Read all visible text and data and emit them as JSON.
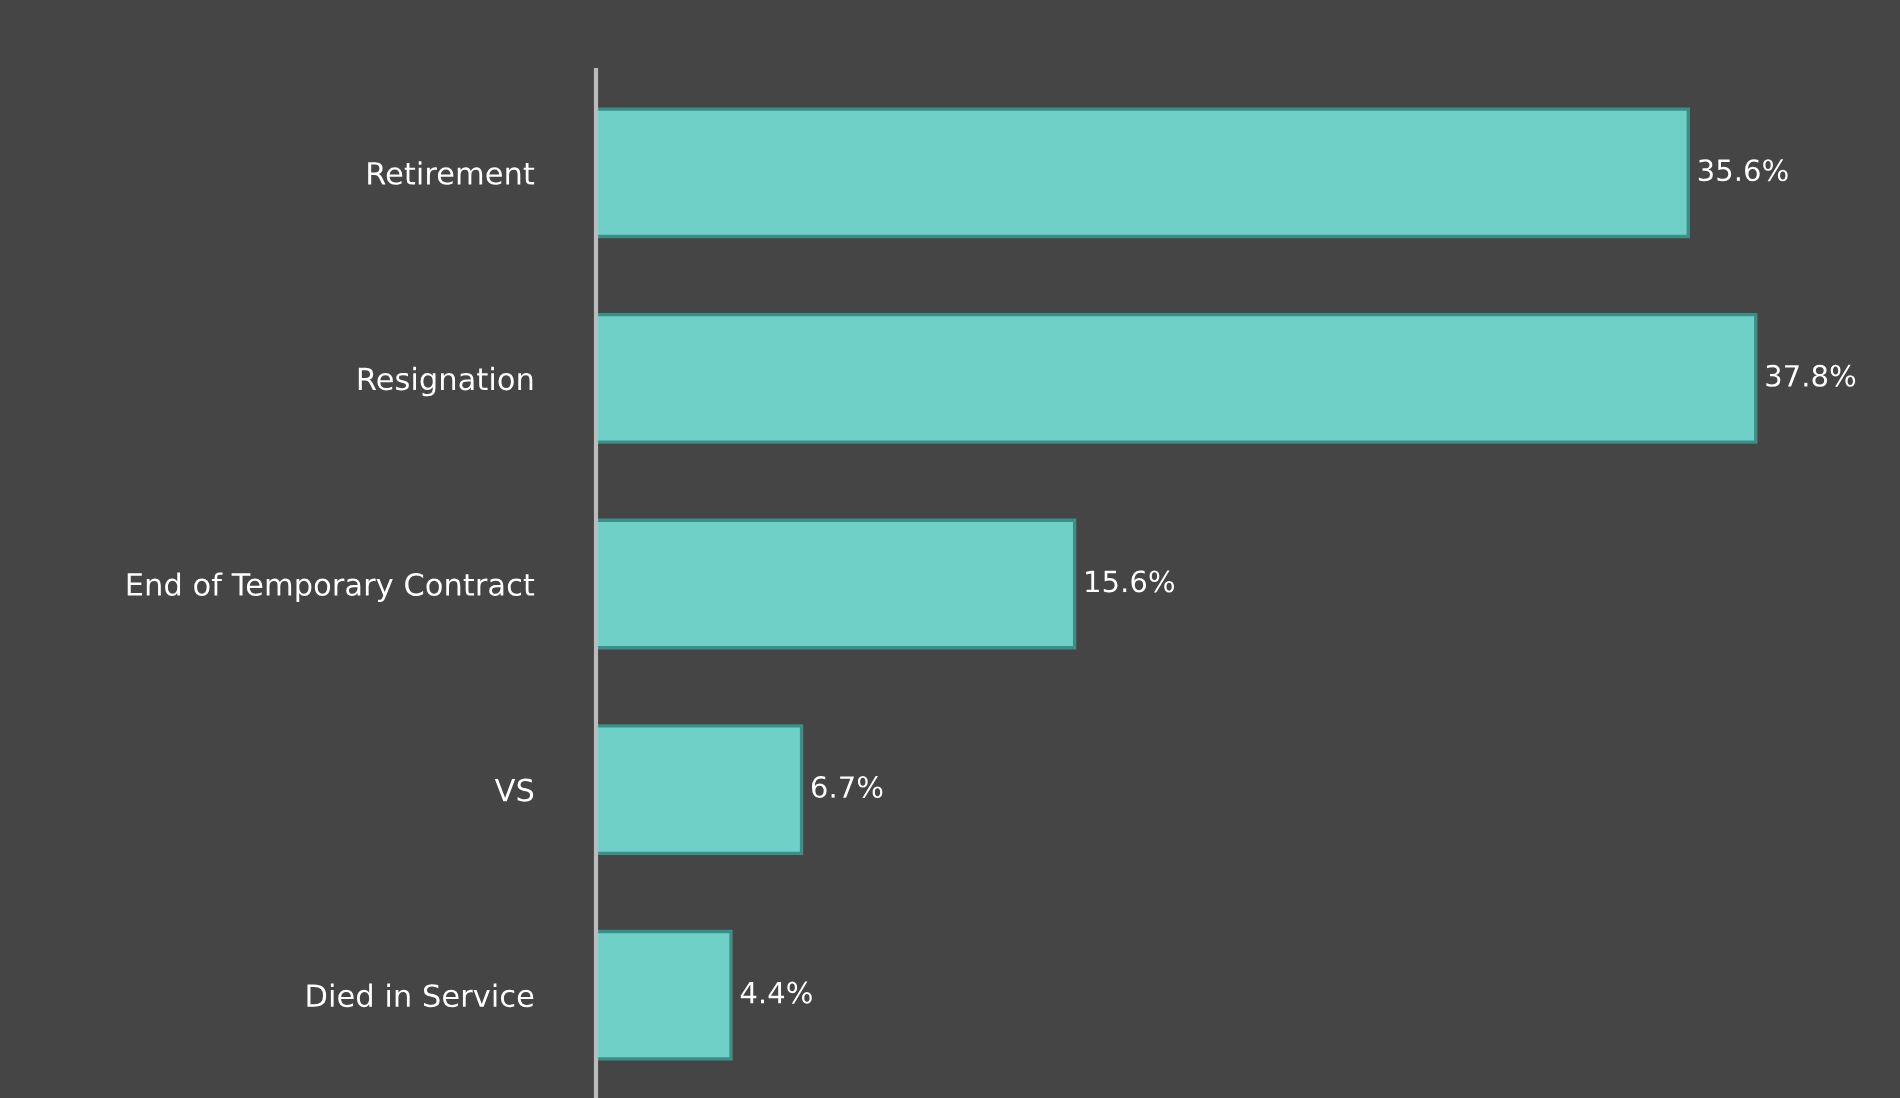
{
  "chart_data": {
    "type": "bar",
    "orientation": "horizontal",
    "categories": [
      "Retirement",
      "Resignation",
      "End of Temporary Contract",
      "VS",
      "Died in Service"
    ],
    "values": [
      35.6,
      37.8,
      15.6,
      6.7,
      4.4
    ],
    "value_labels": [
      "35.6%",
      "37.8%",
      "15.6%",
      "6.7%",
      "4.4%"
    ],
    "color": "#6fd0c8",
    "xlim": [
      0,
      42.5
    ],
    "tick_labels": "y",
    "grid": false,
    "legend": false
  }
}
